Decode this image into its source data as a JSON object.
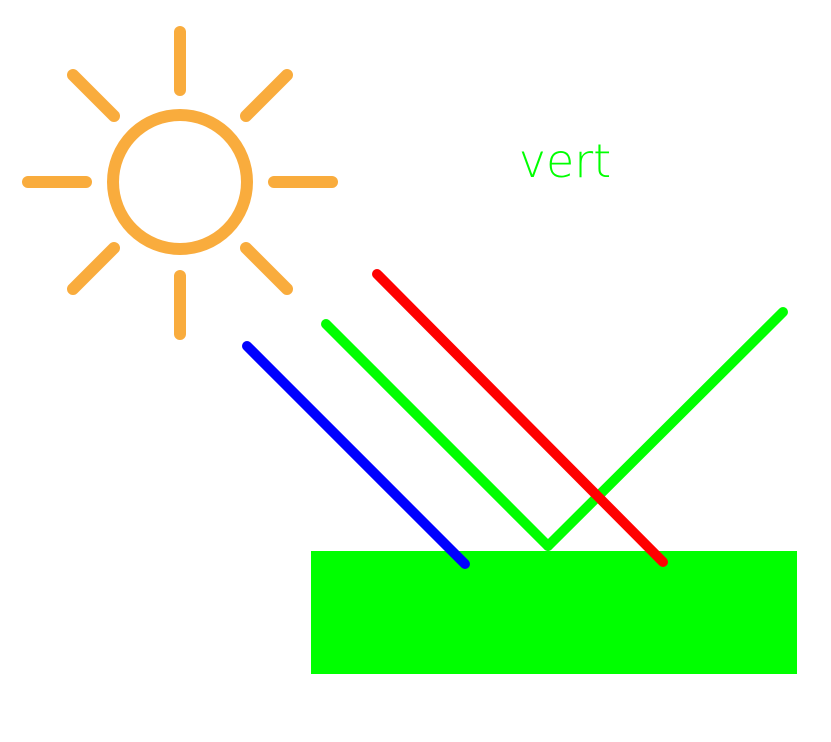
{
  "diagram": {
    "label": "vert",
    "colors": {
      "sun": "#F9AC3D",
      "label": "#00FF00",
      "surface": "#00FF00",
      "ray_blue": "#0000FF",
      "ray_green_incident": "#00FF00",
      "ray_green_reflected": "#00FF00",
      "ray_red": "#FF0000"
    },
    "icons": {
      "sun": "sun-icon"
    }
  }
}
